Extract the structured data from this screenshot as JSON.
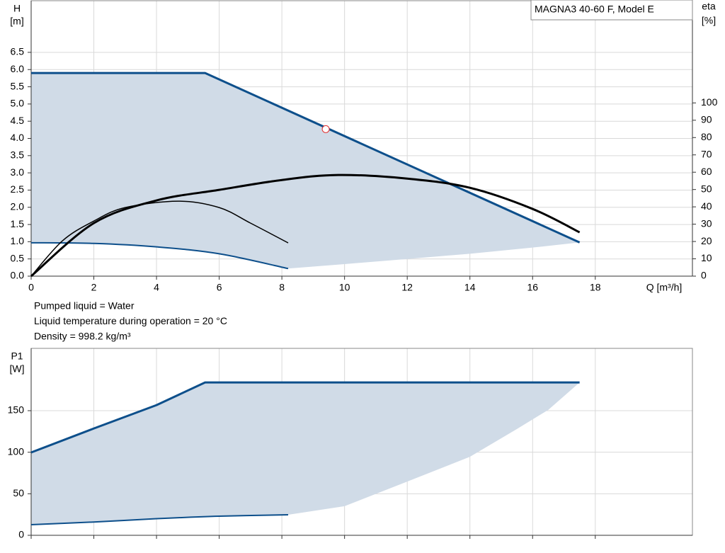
{
  "chart_data": [
    {
      "type": "line",
      "title": "MAGNA3 40-60 F, Model E",
      "x_label": "Q [m³/h]",
      "y_label": [
        "H",
        "[m]"
      ],
      "y2_label": [
        "eta",
        "[%]"
      ],
      "annotations": [
        "Pumped liquid = Water",
        "Liquid temperature during operation = 20 °C",
        "Density = 998.2 kg/m³"
      ],
      "xlim": [
        0,
        21.1
      ],
      "xticks": [
        0,
        2,
        4,
        6,
        8,
        10,
        12,
        14,
        16,
        18
      ],
      "ylim": [
        0,
        8
      ],
      "yticks": [
        {
          "value": 0,
          "label": "0.0"
        },
        0.5,
        {
          "value": 1,
          "label": "1.0"
        },
        1.5,
        {
          "value": 2,
          "label": "2.0"
        },
        2.5,
        {
          "value": 3,
          "label": "3.0"
        },
        3.5,
        {
          "value": 4,
          "label": "4.0"
        },
        4.5,
        {
          "value": 5,
          "label": "5.0"
        },
        5.5,
        {
          "value": 6,
          "label": "6.0"
        },
        6.5
      ],
      "y2lim": [
        0,
        159
      ],
      "y2ticks": [
        0,
        10,
        20,
        30,
        40,
        50,
        60,
        70,
        80,
        90,
        100
      ],
      "grid": true,
      "fill_color": "#d0dbe7",
      "series": [
        {
          "color": "#0d4f8b",
          "width": 3,
          "fill": "upper",
          "x": [
            0,
            5.55,
            17.5
          ],
          "values": [
            5.9,
            5.9,
            0.98
          ]
        },
        {
          "color": "#d0dbe7",
          "width": 0,
          "fill": "edge",
          "x": [
            8.2,
            10,
            12,
            14,
            16,
            17.5
          ],
          "values": [
            0.22,
            0.35,
            0.5,
            0.65,
            0.83,
            0.98
          ]
        },
        {
          "color": "#0d4f8b",
          "width": 2,
          "fill": "lower",
          "smooth": true,
          "x": [
            0,
            2,
            4,
            6,
            8.2
          ],
          "values": [
            0.97,
            0.95,
            0.85,
            0.65,
            0.22
          ]
        },
        {
          "color": "#000000",
          "width": 3,
          "axis": "y2",
          "smooth": true,
          "x": [
            0,
            2,
            4,
            6,
            8,
            9.8,
            12,
            14,
            16,
            17.5
          ],
          "values": [
            0,
            30.6,
            43.7,
            49.8,
            55.5,
            58.4,
            56.3,
            51,
            38.8,
            25.3
          ]
        },
        {
          "color": "#000000",
          "width": 1.5,
          "axis": "y2",
          "smooth": true,
          "x": [
            0,
            1,
            2,
            3,
            4.7,
            6,
            7,
            8.2
          ],
          "values": [
            0,
            20.4,
            31.8,
            39.6,
            43.3,
            39.6,
            30.6,
            19.2
          ]
        }
      ],
      "marker": {
        "x": 9.4,
        "y": 4.27,
        "color": "#e03030"
      }
    },
    {
      "type": "line",
      "y_label": [
        "P1",
        "[W]"
      ],
      "xlim": [
        0,
        21.1
      ],
      "xticks": [
        0,
        2,
        4,
        6,
        8,
        10,
        12,
        14,
        16,
        18
      ],
      "ylim": [
        0,
        225
      ],
      "yticks": [
        0,
        50,
        100,
        150
      ],
      "grid": true,
      "fill_color": "#d0dbe7",
      "series": [
        {
          "color": "#0d4f8b",
          "width": 3,
          "fill": "upper",
          "x": [
            0,
            2,
            4,
            5.55,
            17.5
          ],
          "values": [
            99.7,
            128.6,
            156.7,
            184,
            184
          ]
        },
        {
          "color": "#d0dbe7",
          "width": 0,
          "fill": "edge",
          "smooth": true,
          "x": [
            8.2,
            10,
            12,
            14,
            15.5,
            16.5,
            17.5
          ],
          "values": [
            24.7,
            35,
            64.7,
            94.5,
            128,
            151,
            184
          ]
        },
        {
          "color": "#0d4f8b",
          "width": 2,
          "fill": "lower",
          "smooth": true,
          "x": [
            0,
            2,
            4,
            6,
            8.2
          ],
          "values": [
            12.8,
            16,
            20,
            23,
            24.7
          ]
        }
      ]
    }
  ]
}
